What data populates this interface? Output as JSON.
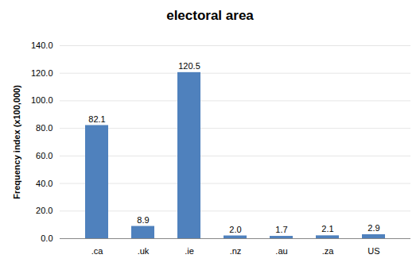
{
  "chart_data": {
    "type": "bar",
    "title": "electoral area",
    "ylabel": "Frequency index (x100,000)",
    "categories": [
      ".ca",
      ".uk",
      ".ie",
      ".nz",
      ".au",
      ".za",
      "US"
    ],
    "values": [
      82.1,
      8.9,
      120.5,
      2.0,
      1.7,
      2.1,
      2.9
    ],
    "value_labels": [
      "82.1",
      "8.9",
      "120.5",
      "2.0",
      "1.7",
      "2.1",
      "2.9"
    ],
    "color": "#4f81bd",
    "ylim": [
      0,
      140
    ],
    "yticks": [
      {
        "value": 0,
        "label": "0.0"
      },
      {
        "value": 20,
        "label": "20.0"
      },
      {
        "value": 40,
        "label": "40.0"
      },
      {
        "value": 60,
        "label": "60.0"
      },
      {
        "value": 80,
        "label": "80.0"
      },
      {
        "value": 100,
        "label": "100.0"
      },
      {
        "value": 120,
        "label": "120.0"
      },
      {
        "value": 140,
        "label": "140.0"
      }
    ],
    "grid": true,
    "data_labels": true
  }
}
